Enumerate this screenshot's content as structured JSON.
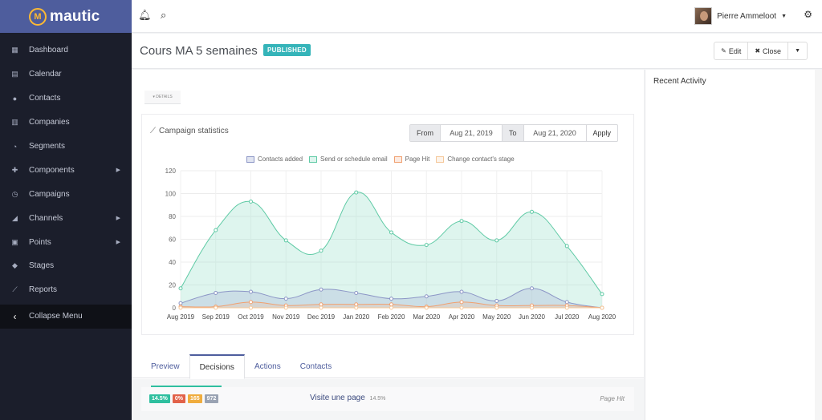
{
  "brand": {
    "name": "mautic",
    "logo_letter": "M",
    "color": "#4e5d9d",
    "accent": "#fdb933"
  },
  "sidebar": {
    "items": [
      {
        "label": "Dashboard",
        "icon": "th-large-icon",
        "glyph": "▦",
        "caret": false
      },
      {
        "label": "Calendar",
        "icon": "calendar-icon",
        "glyph": "▤",
        "caret": false
      },
      {
        "label": "Contacts",
        "icon": "user-icon",
        "glyph": "●",
        "caret": false
      },
      {
        "label": "Companies",
        "icon": "building-icon",
        "glyph": "▥",
        "caret": false
      },
      {
        "label": "Segments",
        "icon": "pie-chart-icon",
        "glyph": "◔",
        "caret": false
      },
      {
        "label": "Components",
        "icon": "puzzle-icon",
        "glyph": "✚",
        "caret": true
      },
      {
        "label": "Campaigns",
        "icon": "clock-icon",
        "glyph": "◷",
        "caret": false
      },
      {
        "label": "Channels",
        "icon": "rss-icon",
        "glyph": "◢",
        "caret": true
      },
      {
        "label": "Points",
        "icon": "calculator-icon",
        "glyph": "▣",
        "caret": true
      },
      {
        "label": "Stages",
        "icon": "cubes-icon",
        "glyph": "◆",
        "caret": false
      },
      {
        "label": "Reports",
        "icon": "line-chart-icon",
        "glyph": "⟋",
        "caret": false
      }
    ],
    "collapse_label": "Collapse Menu"
  },
  "topbar": {
    "user_name": "Pierre Ammeloot"
  },
  "header": {
    "title": "Cours MA 5 semaines",
    "status": "PUBLISHED",
    "edit_label": "Edit",
    "close_label": "Close"
  },
  "details_label": "▾ DETAILS",
  "stats": {
    "title": "Campaign statistics",
    "from_label": "From",
    "from_value": "Aug 21, 2019",
    "to_label": "To",
    "to_value": "Aug 21, 2020",
    "apply_label": "Apply"
  },
  "chart_data": {
    "type": "line",
    "categories": [
      "Aug 2019",
      "Sep 2019",
      "Oct 2019",
      "Nov 2019",
      "Dec 2019",
      "Jan 2020",
      "Feb 2020",
      "Mar 2020",
      "Apr 2020",
      "May 2020",
      "Jun 2020",
      "Jul 2020",
      "Aug 2020"
    ],
    "ylim": [
      0,
      120
    ],
    "yticks": [
      0,
      20,
      40,
      60,
      80,
      100,
      120
    ],
    "grid": true,
    "legend_position": "top",
    "series": [
      {
        "name": "Contacts added",
        "color": "#8c96c6",
        "fill": "rgba(170,180,215,0.35)",
        "values": [
          4,
          13,
          14,
          8,
          16,
          13,
          8,
          10,
          14,
          6,
          17,
          5,
          0
        ]
      },
      {
        "name": "Send or schedule email",
        "color": "#5fcaa5",
        "fill": "rgba(160,225,205,0.35)",
        "values": [
          17,
          68,
          93,
          59,
          50,
          101,
          66,
          55,
          76,
          59,
          84,
          54,
          12
        ]
      },
      {
        "name": "Page Hit",
        "color": "#f0a070",
        "fill": "rgba(245,190,160,0.30)",
        "values": [
          1,
          1,
          5,
          2,
          3,
          3,
          3,
          1,
          5,
          2,
          2,
          2,
          0
        ]
      },
      {
        "name": "Change contact's stage",
        "color": "#f5c89a",
        "fill": "rgba(250,220,190,0.30)",
        "values": [
          0,
          0,
          0,
          0,
          0,
          0,
          0,
          0,
          0,
          0,
          0,
          0,
          0
        ]
      }
    ]
  },
  "tabs": [
    "Preview",
    "Decisions",
    "Actions",
    "Contacts"
  ],
  "active_tab": 1,
  "decision": {
    "badges": [
      {
        "text": "14.5%",
        "color": "#2fbf9f"
      },
      {
        "text": "0%",
        "color": "#e2624a"
      },
      {
        "text": "165",
        "color": "#f0ad3e"
      },
      {
        "text": "972",
        "color": "#9aa3b3"
      }
    ],
    "name": "Visite une page",
    "pct": "14.5%",
    "type": "Page Hit"
  },
  "right_panel": {
    "title": "Recent Activity"
  }
}
